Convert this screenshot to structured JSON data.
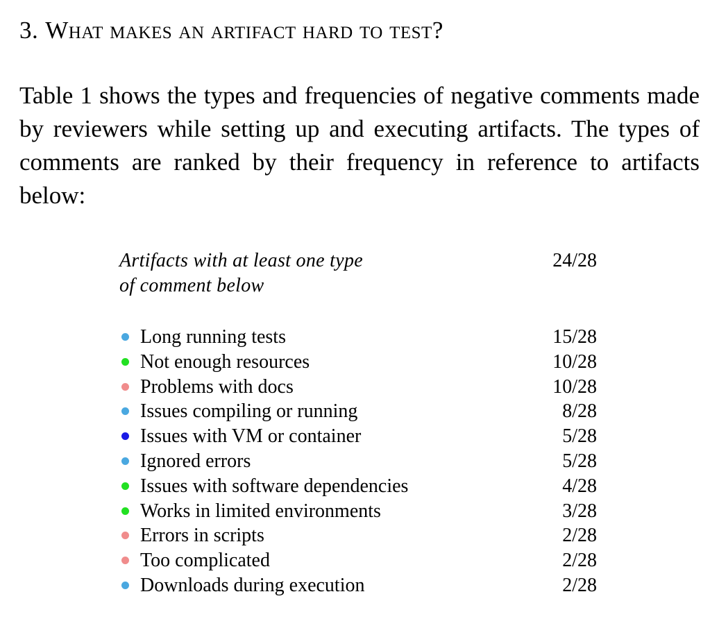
{
  "section": {
    "number": "3.",
    "title": "What makes an artifact hard to test?"
  },
  "paragraph": "Table 1 shows the types and frequencies of negative comments made by reviewers while setting up and executing artifacts. The types of comments are ranked by their frequency in reference to artifacts below:",
  "table": {
    "header_label": "Artifacts with at least one type of comment below",
    "header_value": "24/28",
    "rows": [
      {
        "label": "Long running tests",
        "value": "15/28",
        "color": "#4aa8e0"
      },
      {
        "label": "Not enough resources",
        "value": "10/28",
        "color": "#22e022"
      },
      {
        "label": "Problems with docs",
        "value": "10/28",
        "color": "#f08c8c"
      },
      {
        "label": "Issues compiling or running",
        "value": "8/28",
        "color": "#4aa8e0"
      },
      {
        "label": "Issues with VM or container",
        "value": "5/28",
        "color": "#1a1ae6"
      },
      {
        "label": "Ignored errors",
        "value": "5/28",
        "color": "#4aa8e0"
      },
      {
        "label": "Issues with software dependencies",
        "value": "4/28",
        "color": "#22e022"
      },
      {
        "label": "Works in limited environments",
        "value": "3/28",
        "color": "#22e022"
      },
      {
        "label": "Errors in scripts",
        "value": "2/28",
        "color": "#f08c8c"
      },
      {
        "label": "Too complicated",
        "value": "2/28",
        "color": "#f08c8c"
      },
      {
        "label": "Downloads during execution",
        "value": "2/28",
        "color": "#4aa8e0"
      }
    ]
  }
}
